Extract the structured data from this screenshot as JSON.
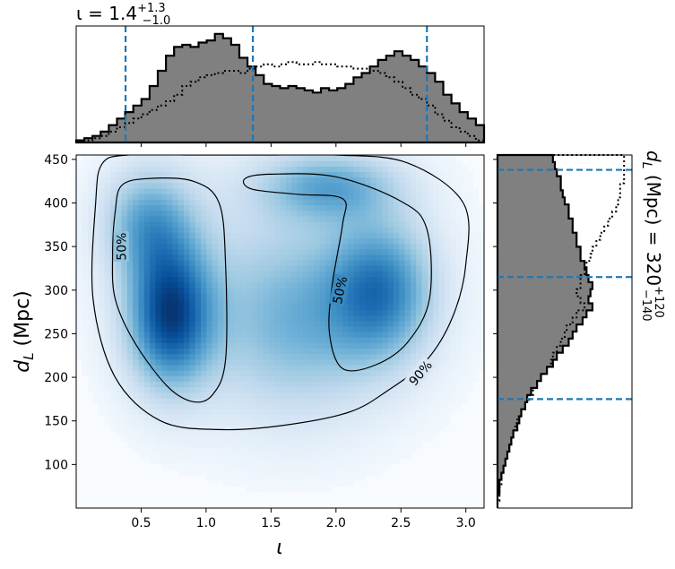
{
  "figure": {
    "title_top": {
      "param": "ι",
      "median": "1.4",
      "plus": "+1.3",
      "minus": "−1.0"
    },
    "title_right": {
      "param": "d",
      "sub": "L",
      "unit": " (Mpc)",
      "median": "320",
      "plus": "+120",
      "minus": "−140"
    },
    "xlabel": "ι",
    "ylabel": {
      "param": "d",
      "sub": "L",
      "unit": " (Mpc)"
    },
    "contour_labels": [
      "50%",
      "50%",
      "90%"
    ],
    "colors": {
      "hist_fill": "#808080",
      "dashed": "#1f77b4",
      "density": "Blues"
    }
  },
  "chart_data": [
    {
      "type": "heatmap",
      "name": "joint posterior",
      "xlabel": "ι",
      "ylabel": "d_L (Mpc)",
      "xlim": [
        0.0,
        3.14
      ],
      "ylim": [
        50,
        455
      ],
      "xticks": [
        0.5,
        1.0,
        1.5,
        2.0,
        2.5,
        3.0
      ],
      "xtick_labels": [
        "0.5",
        "1.0",
        "1.5",
        "2.0",
        "2.5",
        "3.0"
      ],
      "yticks": [
        100,
        150,
        200,
        250,
        300,
        350,
        400,
        450
      ],
      "ytick_labels": [
        "100",
        "150",
        "200",
        "250",
        "300",
        "350",
        "400",
        "450"
      ],
      "modes": [
        {
          "x": 0.72,
          "y": 275,
          "weight": 1.0
        },
        {
          "x": 2.35,
          "y": 300,
          "weight": 0.75
        },
        {
          "x": 1.95,
          "y": 420,
          "weight": 0.55
        }
      ],
      "contours": [
        {
          "label": "50%",
          "x": [
            0.35,
            0.55,
            0.9,
            1.1,
            1.15,
            1.15,
            1.05,
            0.9,
            0.7,
            0.45,
            0.3,
            0.28,
            0.3,
            0.35
          ],
          "y": [
            420,
            428,
            425,
            400,
            330,
            220,
            180,
            172,
            190,
            240,
            290,
            340,
            390,
            420
          ]
        },
        {
          "label": "50%",
          "x": [
            1.3,
            1.5,
            2.0,
            2.5,
            2.7,
            2.72,
            2.55,
            2.3,
            2.05,
            1.95,
            1.97,
            2.05,
            2.05,
            1.7,
            1.35,
            1.3
          ],
          "y": [
            428,
            433,
            430,
            402,
            370,
            290,
            240,
            214,
            210,
            250,
            305,
            375,
            405,
            410,
            416,
            428
          ]
        },
        {
          "label": "90%",
          "x": [
            0.2,
            0.4,
            0.9,
            1.5,
            2.0,
            2.55,
            2.98,
            3.0,
            2.9,
            2.7,
            2.4,
            2.1,
            1.6,
            1.1,
            0.65,
            0.3,
            0.13,
            0.15,
            0.2
          ],
          "y": [
            445,
            455,
            455,
            455,
            455,
            446,
            400,
            330,
            270,
            220,
            185,
            160,
            145,
            140,
            150,
            200,
            290,
            400,
            445
          ]
        }
      ],
      "contour_label_positions": [
        {
          "x": 0.35,
          "y": 350
        },
        {
          "x": 2.03,
          "y": 300
        },
        {
          "x": 2.65,
          "y": 205
        }
      ]
    },
    {
      "type": "bar",
      "name": "ι marginal",
      "xlim": [
        0.0,
        3.14
      ],
      "bin_width": 0.0628,
      "series": [
        {
          "style": "filled step",
          "values": [
            1,
            2,
            3,
            5,
            8,
            11,
            14,
            17,
            20,
            26,
            33,
            40,
            44,
            45,
            44,
            46,
            47,
            50,
            48,
            45,
            39,
            35,
            31,
            27,
            26,
            25,
            26,
            25,
            24,
            23,
            25,
            24,
            25,
            27,
            30,
            32,
            35,
            38,
            40,
            42,
            40,
            38,
            35,
            32,
            28,
            22,
            18,
            14,
            11,
            8
          ]
        },
        {
          "style": "dotted step",
          "values": [
            0,
            1,
            2,
            3,
            5,
            7,
            9,
            11,
            13,
            15,
            17,
            19,
            22,
            26,
            28,
            30,
            31,
            32,
            33,
            33,
            32,
            34,
            35,
            36,
            35,
            36,
            37,
            36,
            36,
            37,
            36,
            36,
            35,
            35,
            34,
            34,
            33,
            32,
            30,
            28,
            25,
            22,
            20,
            17,
            13,
            10,
            7,
            5,
            3,
            1
          ]
        }
      ],
      "dashed_lines": [
        0.38,
        1.36,
        2.7
      ]
    },
    {
      "type": "bar",
      "name": "d_L marginal",
      "orientation": "horizontal",
      "ylim": [
        50,
        455
      ],
      "bin_width": 8.1,
      "series": [
        {
          "style": "filled step",
          "values": [
            0,
            0,
            1,
            1,
            2,
            3,
            4,
            5,
            6,
            7,
            8,
            10,
            11,
            12,
            14,
            15,
            17,
            20,
            22,
            25,
            28,
            30,
            33,
            36,
            38,
            40,
            43,
            45,
            48,
            46,
            47,
            48,
            46,
            45,
            44,
            42,
            42,
            40,
            40,
            38,
            38,
            36,
            36,
            34,
            33,
            32,
            32,
            30,
            29,
            28
          ]
        },
        {
          "style": "dotted step",
          "values": [
            0,
            1,
            1,
            2,
            2,
            3,
            4,
            5,
            6,
            7,
            8,
            9,
            10,
            12,
            14,
            16,
            18,
            20,
            22,
            25,
            27,
            28,
            30,
            32,
            34,
            35,
            38,
            40,
            44,
            42,
            40,
            42,
            42,
            44,
            45,
            47,
            48,
            50,
            52,
            54,
            56,
            58,
            60,
            61,
            62,
            62,
            64,
            64,
            64,
            64
          ]
        }
      ],
      "dashed_lines": [
        175,
        315,
        438
      ]
    }
  ]
}
